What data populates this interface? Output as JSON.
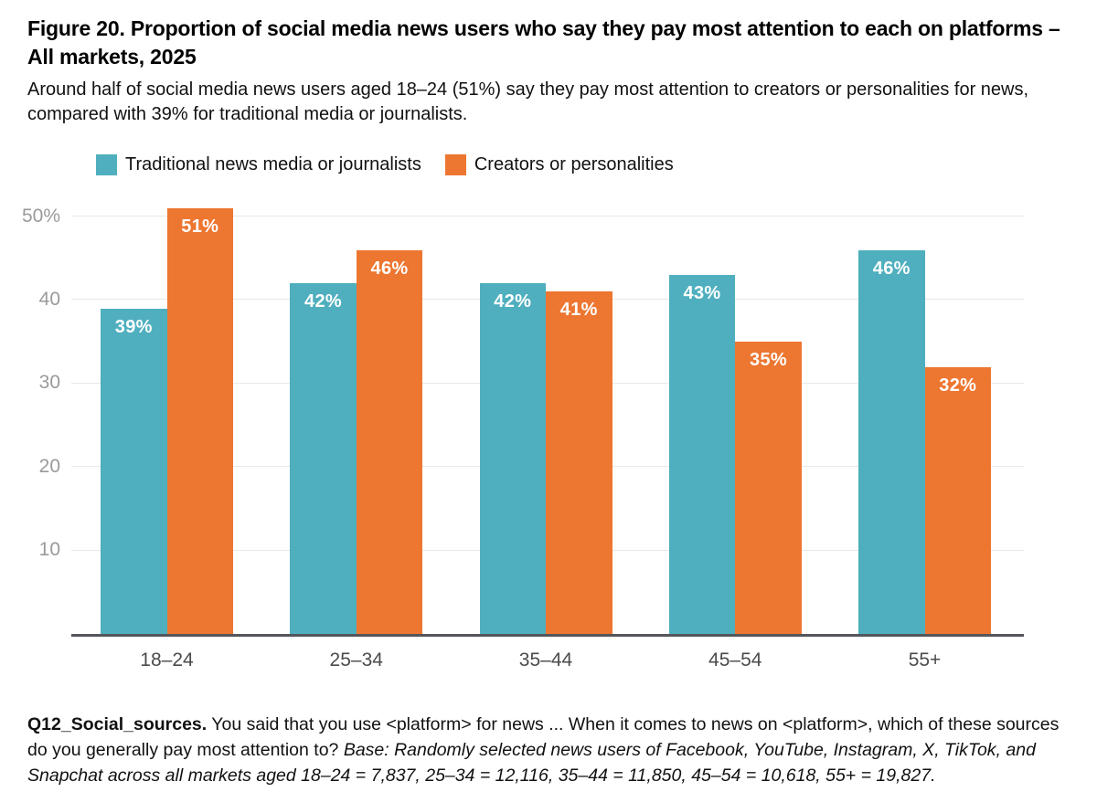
{
  "chart_data": {
    "type": "bar",
    "title": "Figure 20. Proportion of social media news users who say they pay most attention to each on platforms – All markets, 2025",
    "subtitle": "Around half of social media news users aged 18–24 (51%) say they pay most attention to creators or personalities for news, compared with 39% for traditional media or journalists.",
    "categories": [
      "18–24",
      "25–34",
      "35–44",
      "45–54",
      "55+"
    ],
    "series": [
      {
        "name": "Traditional news media or journalists",
        "color": "#4FAFBE",
        "values": [
          39,
          42,
          42,
          43,
          46
        ],
        "labels": [
          "39%",
          "42%",
          "42%",
          "43%",
          "46%"
        ]
      },
      {
        "name": "Creators or personalities",
        "color": "#ED7631",
        "values": [
          51,
          46,
          41,
          35,
          32
        ],
        "labels": [
          "51%",
          "46%",
          "41%",
          "35%",
          "32%"
        ]
      }
    ],
    "xlabel": "",
    "ylabel": "",
    "ylim": [
      0,
      50
    ],
    "y_ticks": [
      {
        "label": "10",
        "value": 10
      },
      {
        "label": "20",
        "value": 20
      },
      {
        "label": "30",
        "value": 30
      },
      {
        "label": "40",
        "value": 40
      },
      {
        "label": "50%",
        "value": 50
      }
    ],
    "grid": true,
    "legend_position": "top"
  },
  "legend": [
    {
      "label": "Traditional news media or journalists",
      "color": "#4FAFBE"
    },
    {
      "label": "Creators or personalities",
      "color": "#ED7631"
    }
  ],
  "footnote": {
    "label": "Q12_Social_sources.",
    "question": " You said that you use <platform> for news ... When it comes to news on <platform>, which of these sources do you generally pay most attention to? ",
    "base": "Base: Randomly selected news users of Facebook, YouTube, Instagram, X, TikTok, and Snapchat across all markets aged 18–24 = 7,837, 25–34 = 12,116, 35–44 = 11,850, 45–54 = 10,618, 55+ = 19,827."
  }
}
